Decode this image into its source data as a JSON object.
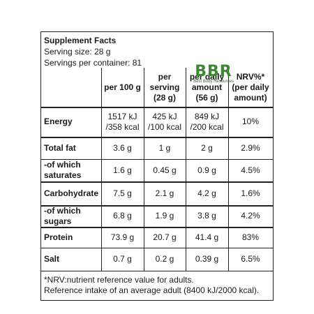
{
  "title": "Supplement Facts",
  "serving_size": "Serving size: 28 g",
  "servings_per_container": "Servings per container: 81",
  "logo": {
    "text": "BBR",
    "tagline": "Best Body Resources",
    "color": "#3c8a30"
  },
  "columns": [
    "per 100 g",
    "per serving (28 g)",
    "per daily amount (56 g)",
    "NRV%* (per daily amount)"
  ],
  "rows": [
    {
      "label": "Energy",
      "values": [
        "1517 kJ /358 kcal",
        "425 kJ /100 kcal",
        "849 kJ /200 kcal",
        "10%"
      ]
    },
    {
      "label": "Total fat",
      "values": [
        "3.6 g",
        "1 g",
        "2 g",
        "2.9%"
      ]
    },
    {
      "label": "-of which saturates",
      "values": [
        "1.6 g",
        "0.45 g",
        "0.9 g",
        "4.5%"
      ]
    },
    {
      "label": "Carbohydrate",
      "values": [
        "7.5 g",
        "2.1 g",
        "4.2 g",
        "1.6%"
      ]
    },
    {
      "label": "-of which sugars",
      "values": [
        "6.8 g",
        "1.9 g",
        "3.8 g",
        "4.2%"
      ]
    },
    {
      "label": "Protein",
      "values": [
        "73.9 g",
        "20.7 g",
        "41.4 g",
        "83%"
      ]
    },
    {
      "label": "Salt",
      "values": [
        "0.7 g",
        "0.2 g",
        "0.39 g",
        "6.5%"
      ]
    }
  ],
  "footnote": [
    "*NRV:nutrient reference value for adults.",
    "Reference intake of an average adult (8400 kJ/2000 kcal)."
  ]
}
